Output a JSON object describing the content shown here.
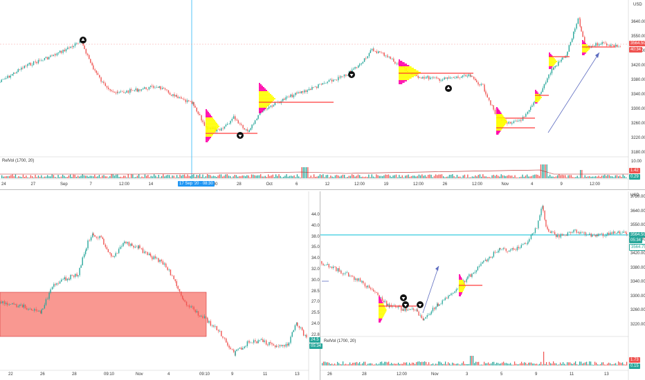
{
  "top_panel": {
    "currency": "USD",
    "price_ticks": [
      "3640.00",
      "3550.00",
      "3470.00",
      "3420.00",
      "3380.00",
      "3340.00",
      "3300.00",
      "3260.00",
      "3220.00",
      "3180.00"
    ],
    "last_price": "3564.50",
    "countdown": "40:34",
    "volume_label": "RelVol (1700, 20)",
    "volume_ticks": [
      "10.00",
      "5.00",
      "0.00"
    ],
    "volume_tag_red": "1.42",
    "volume_tag_green": "0.29",
    "time_ticks": [
      "24",
      "27",
      "Sep",
      "7",
      "12:00",
      "14",
      "21",
      "12:00",
      "28",
      "Oct",
      "6",
      "12",
      "12:00",
      "19",
      "12:00",
      "26",
      "12:00",
      "Nov",
      "4",
      "9",
      "12:00"
    ],
    "crosshair_date": "17 Sep '20 · 08:30",
    "colors": {
      "up": "#26a69a",
      "down": "#ef5350",
      "accent": "#2196f3",
      "profile": "#ffff00",
      "profile_edge": "#ff00aa",
      "poc": "#ff3b3b"
    }
  },
  "bottom_left_panel": {
    "price_ticks": [
      "44.0",
      "40.0",
      "38.0",
      "35.0",
      "34.0",
      "32.0",
      "30.0",
      "28.5",
      "27.0",
      "25.5",
      "24.0",
      "22.8",
      "21.7"
    ],
    "price_tag": "24.5",
    "time_tag": "05:34",
    "time_ticks": [
      "22",
      "26",
      "28",
      "09:10",
      "Nov",
      "4",
      "09:10",
      "9",
      "11",
      "13"
    ],
    "colors": {
      "zone": "#f44336"
    }
  },
  "bottom_right_panel": {
    "currency": "USD",
    "price_ticks": [
      "3720.00",
      "3640.00",
      "3550.00",
      "3470.00",
      "3420.00",
      "3380.00",
      "3340.00",
      "3300.00",
      "3260.00",
      "3220.00"
    ],
    "last_price": "3564.50",
    "countdown": "05:34",
    "second_price": "3564.75",
    "volume_label": "RelVol (1700, 20)",
    "volume_tag_red": "1.73",
    "volume_tag_green": "0.15",
    "time_ticks": [
      "26",
      "28",
      "12:00",
      "Nov",
      "3",
      "5",
      "9",
      "11",
      "13"
    ],
    "colors": {
      "hline": "#00bcd4"
    }
  }
}
